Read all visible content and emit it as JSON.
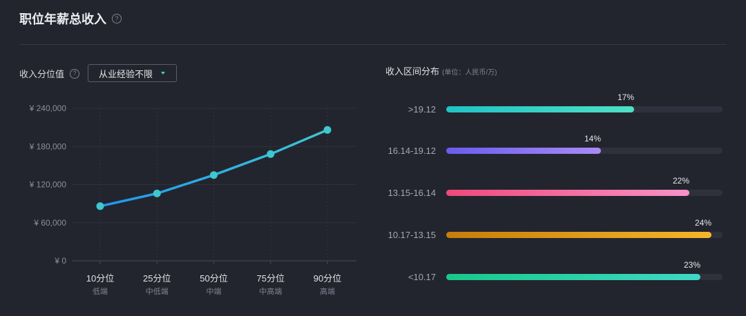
{
  "header": {
    "title": "职位年薪总收入",
    "help": "?"
  },
  "left": {
    "label": "收入分位值",
    "help": "?",
    "select": {
      "value": "从业经验不限"
    }
  },
  "right": {
    "title": "收入区间分布",
    "unit": "(单位：人民币/万)"
  },
  "colors": {
    "line_start": "#1f96f0",
    "line_end": "#3ec7cf",
    "point": "#3ec7cf"
  },
  "chart_data": [
    {
      "type": "line",
      "x": [
        "10分位",
        "25分位",
        "50分位",
        "75分位",
        "90分位"
      ],
      "x_sublabels": [
        "低端",
        "中低端",
        "中端",
        "中高端",
        "高端"
      ],
      "y": [
        86000,
        106000,
        135000,
        168000,
        206000
      ],
      "ylim": [
        0,
        240000
      ],
      "yticks": [
        "¥ 0",
        "¥ 60,000",
        "¥ 120,000",
        "¥ 180,000",
        "¥ 240,000"
      ],
      "grid": true
    },
    {
      "type": "bar",
      "orientation": "horizontal",
      "categories": [
        ">19.12",
        "16.14-19.12",
        "13.15-16.14",
        "10.17-13.15",
        "<10.17"
      ],
      "values": [
        17,
        14,
        22,
        24,
        23
      ],
      "value_labels": [
        "17%",
        "14%",
        "22%",
        "24%",
        "23%"
      ],
      "xlim": [
        0,
        25
      ],
      "colors": [
        [
          "#1fc3c6",
          "#4fe0c6"
        ],
        [
          "#6a5cf0",
          "#a98bf5"
        ],
        [
          "#f0497a",
          "#f792c8"
        ],
        [
          "#c77d0a",
          "#f5b62a"
        ],
        [
          "#17c98a",
          "#3fd7c6"
        ]
      ]
    }
  ]
}
